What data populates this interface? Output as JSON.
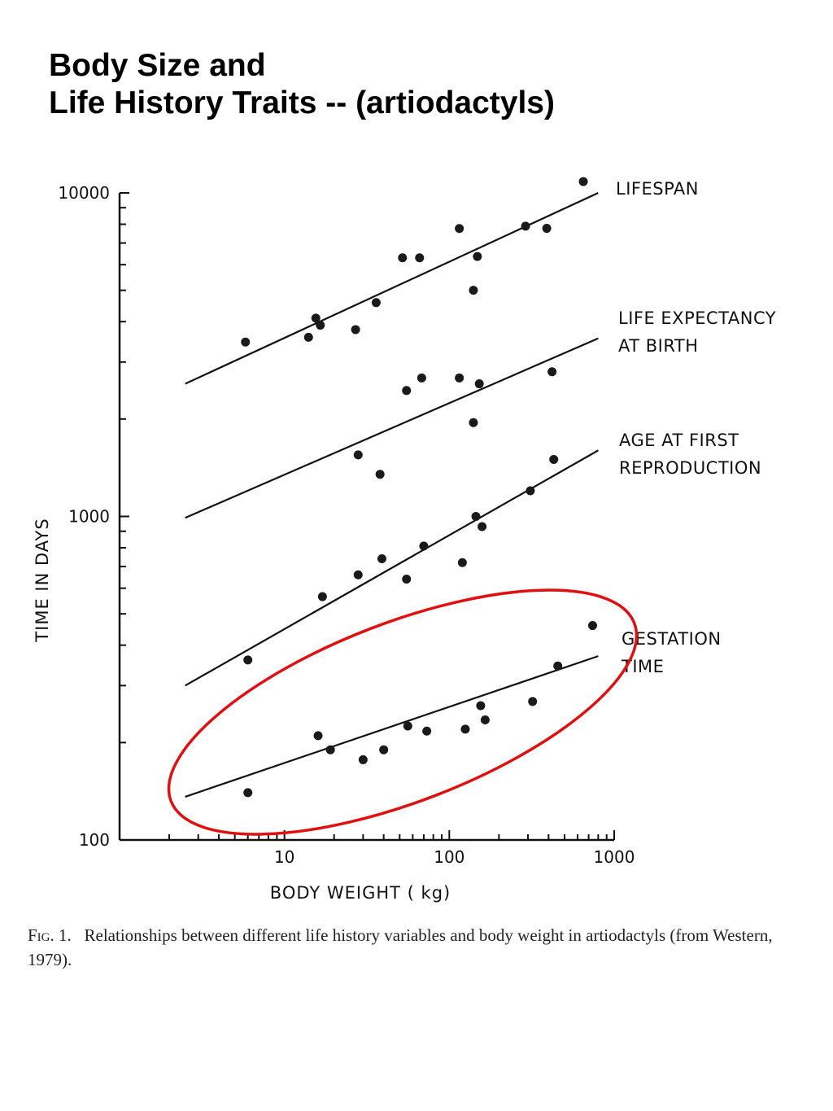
{
  "slide": {
    "title_line1": "Body Size and",
    "title_line2": "Life History Traits  -- (artiodactyls)"
  },
  "caption": {
    "label": "Fig. 1.",
    "text": "Relationships between different life history variables and body weight in artiodactyls (from Western, 1979)."
  },
  "highlight": {
    "color": "#e01010",
    "target_series": "GESTATION TIME"
  },
  "chart_data": {
    "type": "scatter",
    "title": "",
    "xlabel": "BODY WEIGHT ( kg)",
    "ylabel": "TIME IN DAYS",
    "xscale": "log",
    "yscale": "log",
    "xlim": [
      1,
      1000
    ],
    "ylim": [
      100,
      10000
    ],
    "xticks": [
      10,
      100,
      1000
    ],
    "xtick_labels": [
      "10",
      "100",
      "1000"
    ],
    "yticks": [
      100,
      1000,
      10000
    ],
    "ytick_labels": [
      "100",
      "1000",
      "10000"
    ],
    "grid": false,
    "series": [
      {
        "name": "LIFESPAN",
        "label_lines": [
          "LIFESPAN"
        ],
        "points": [
          [
            5.8,
            3460
          ],
          [
            14,
            3580
          ],
          [
            15.5,
            4100
          ],
          [
            16.5,
            3900
          ],
          [
            27,
            3780
          ],
          [
            36,
            4580
          ],
          [
            52,
            6300
          ],
          [
            66,
            6300
          ],
          [
            115,
            7760
          ],
          [
            140,
            5000
          ],
          [
            148,
            6360
          ],
          [
            290,
            7890
          ],
          [
            390,
            7770
          ],
          [
            650,
            10840
          ]
        ],
        "fit": [
          [
            2.5,
            2570
          ],
          [
            800,
            10000
          ]
        ]
      },
      {
        "name": "LIFE EXPECTANCY AT BIRTH",
        "label_lines": [
          "LIFE  EXPECTANCY",
          "AT  BIRTH"
        ],
        "points": [
          [
            28,
            1550
          ],
          [
            38,
            1350
          ],
          [
            55,
            2450
          ],
          [
            68,
            2680
          ],
          [
            115,
            2680
          ],
          [
            140,
            1950
          ],
          [
            152,
            2570
          ],
          [
            420,
            2800
          ]
        ],
        "fit": [
          [
            2.5,
            990
          ],
          [
            800,
            3550
          ]
        ]
      },
      {
        "name": "AGE AT FIRST REPRODUCTION",
        "label_lines": [
          "AGE  AT  FIRST",
          "REPRODUCTION"
        ],
        "points": [
          [
            6,
            360
          ],
          [
            17,
            565
          ],
          [
            28,
            660
          ],
          [
            39,
            740
          ],
          [
            55,
            640
          ],
          [
            70,
            810
          ],
          [
            120,
            720
          ],
          [
            145,
            1000
          ],
          [
            158,
            930
          ],
          [
            310,
            1200
          ],
          [
            430,
            1500
          ]
        ],
        "fit": [
          [
            2.5,
            300
          ],
          [
            800,
            1600
          ]
        ]
      },
      {
        "name": "GESTATION TIME",
        "label_lines": [
          "GESTATION",
          "TIME"
        ],
        "points": [
          [
            6,
            140
          ],
          [
            16,
            210
          ],
          [
            19,
            190
          ],
          [
            30,
            177
          ],
          [
            40,
            190
          ],
          [
            56,
            225
          ],
          [
            73,
            217
          ],
          [
            125,
            220
          ],
          [
            155,
            260
          ],
          [
            165,
            235
          ],
          [
            320,
            268
          ],
          [
            455,
            345
          ],
          [
            740,
            460
          ]
        ],
        "fit": [
          [
            2.5,
            136
          ],
          [
            800,
            370
          ]
        ]
      }
    ]
  }
}
